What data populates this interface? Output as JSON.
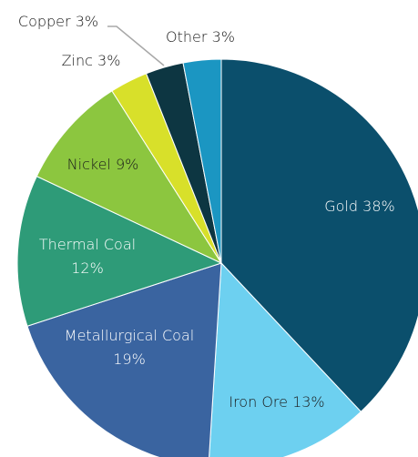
{
  "chart_data": {
    "type": "pie",
    "title": "",
    "slices": [
      {
        "label": "Gold",
        "value": 38,
        "display": "Gold 38%",
        "color": "#0b4f6c",
        "text_color": "#ffffff"
      },
      {
        "label": "Iron Ore",
        "value": 13,
        "display": "Iron Ore 13%",
        "color": "#6dd0f0",
        "text_color": "#1a1a1a"
      },
      {
        "label": "Metallurgical Coal",
        "value": 19,
        "display": "Metallurgical Coal 19%",
        "color": "#3a64a0",
        "text_color": "#ffffff"
      },
      {
        "label": "Thermal Coal",
        "value": 12,
        "display": "Thermal Coal 12%",
        "color": "#2e9b78",
        "text_color": "#ffffff"
      },
      {
        "label": "Nickel",
        "value": 9,
        "display": "Nickel 9%",
        "color": "#8cc63f",
        "text_color": "#1a1a1a"
      },
      {
        "label": "Zinc",
        "value": 3,
        "display": "Zinc 3%",
        "color": "#d8e02a",
        "text_color": "#1a1a1a"
      },
      {
        "label": "Copper",
        "value": 3,
        "display": "Copper 3%",
        "color": "#0d3642",
        "text_color": "#1a1a1a"
      },
      {
        "label": "Other",
        "value": 3,
        "display": "Other 3%",
        "color": "#1b96c2",
        "text_color": "#1a1a1a"
      }
    ]
  }
}
